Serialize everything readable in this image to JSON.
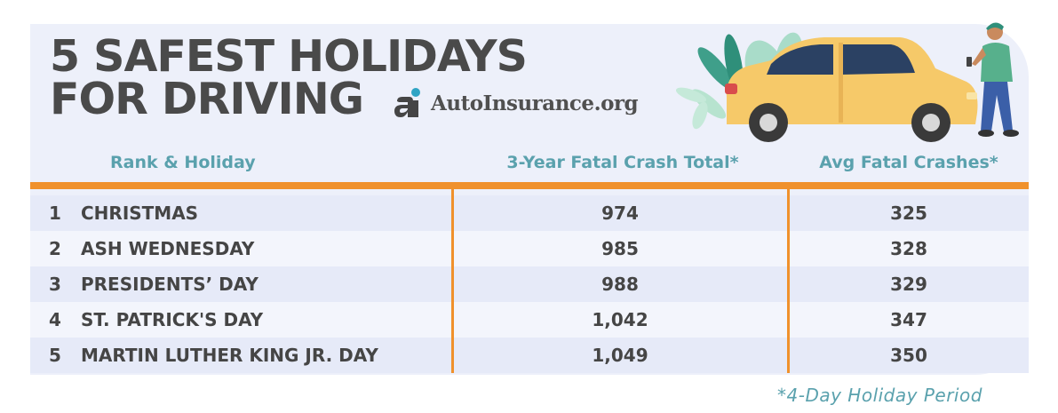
{
  "title": {
    "line1": "5 SAFEST HOLIDAYS",
    "line2": "FOR DRIVING"
  },
  "brand": {
    "mark": "ai",
    "name": "AutoInsurance.org"
  },
  "footnote": "*4-Day Holiday Period",
  "colors": {
    "accent": "#f0912c",
    "header_text": "#5aa1ad",
    "title_text": "#4a4a4a",
    "panel": "#edf0fa"
  },
  "icons": [
    "autoinsurance-logo-icon",
    "car-illustration",
    "person-illustration",
    "plant-illustration"
  ],
  "chart_data": {
    "type": "table",
    "columns": [
      "Rank & Holiday",
      "3-Year Fatal Crash Total*",
      "Avg Fatal Crashes*"
    ],
    "rows": [
      {
        "rank": "1",
        "holiday": "CHRISTMAS",
        "total": "974",
        "avg": "325"
      },
      {
        "rank": "2",
        "holiday": "ASH WEDNESDAY",
        "total": "985",
        "avg": "328"
      },
      {
        "rank": "3",
        "holiday": "PRESIDENTS’ DAY",
        "total": "988",
        "avg": "329"
      },
      {
        "rank": "4",
        "holiday": "ST. PATRICK'S DAY",
        "total": "1,042",
        "avg": "347"
      },
      {
        "rank": "5",
        "holiday": "MARTIN LUTHER KING JR. DAY",
        "total": "1,049",
        "avg": "350"
      }
    ]
  }
}
